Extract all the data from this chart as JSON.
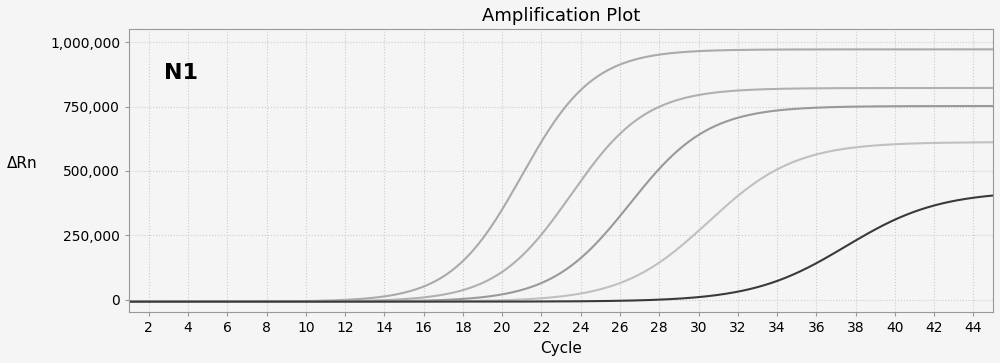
{
  "title": "Amplification Plot",
  "xlabel": "Cycle",
  "ylabel": "ΔRn",
  "annotation": "N1",
  "xlim": [
    1,
    45
  ],
  "ylim": [
    -50000,
    1050000
  ],
  "xticks": [
    2,
    4,
    6,
    8,
    10,
    12,
    14,
    16,
    18,
    20,
    22,
    24,
    26,
    28,
    30,
    32,
    34,
    36,
    38,
    40,
    42,
    44
  ],
  "yticks": [
    0,
    250000,
    500000,
    750000,
    1000000
  ],
  "ytick_labels": [
    "0",
    "250,000",
    "500,000",
    "750,000",
    "1,000,000"
  ],
  "curves": [
    {
      "color": "#aaaaaa",
      "midpoint": 21.0,
      "L": 980000,
      "k": 0.55,
      "baseline": -8000
    },
    {
      "color": "#b0b0b0",
      "midpoint": 23.5,
      "L": 830000,
      "k": 0.52,
      "baseline": -8000
    },
    {
      "color": "#999999",
      "midpoint": 26.5,
      "L": 760000,
      "k": 0.5,
      "baseline": -8000
    },
    {
      "color": "#c0c0c0",
      "midpoint": 30.5,
      "L": 620000,
      "k": 0.45,
      "baseline": -8000
    },
    {
      "color": "#3a3a3a",
      "midpoint": 37.5,
      "L": 430000,
      "k": 0.42,
      "baseline": -8000
    }
  ],
  "bg_color": "#f5f5f5",
  "grid_color": "#cccccc",
  "title_fontsize": 13,
  "label_fontsize": 11,
  "tick_fontsize": 10
}
